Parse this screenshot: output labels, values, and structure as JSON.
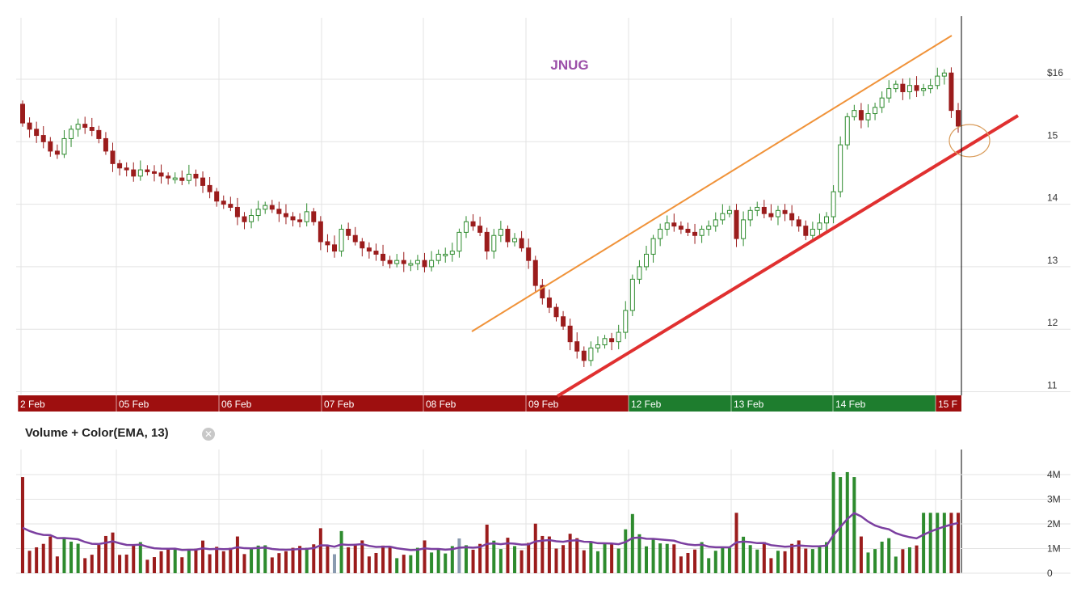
{
  "chart_data": [
    {
      "type": "candlestick",
      "title": "JNUG",
      "ylim": [
        10.9,
        17
      ],
      "y_ticks": [
        "$16",
        "15",
        "14",
        "13",
        "12",
        "11"
      ],
      "y_tick_values": [
        16,
        15,
        14,
        13,
        12,
        11
      ],
      "grid": true,
      "days": [
        {
          "label": "2 Feb",
          "session": "down"
        },
        {
          "label": "05 Feb",
          "session": "down"
        },
        {
          "label": "06 Feb",
          "session": "down"
        },
        {
          "label": "07 Feb",
          "session": "down"
        },
        {
          "label": "08 Feb",
          "session": "down"
        },
        {
          "label": "09 Feb",
          "session": "down"
        },
        {
          "label": "12 Feb",
          "session": "up"
        },
        {
          "label": "13 Feb",
          "session": "up"
        },
        {
          "label": "14 Feb",
          "session": "up"
        },
        {
          "label": "15 F",
          "session": "down"
        }
      ],
      "close": [
        15.3,
        15.2,
        15.1,
        15.0,
        14.85,
        14.8,
        15.05,
        15.2,
        15.28,
        15.23,
        15.18,
        15.05,
        14.85,
        14.65,
        14.58,
        14.55,
        14.45,
        14.55,
        14.52,
        14.5,
        14.45,
        14.42,
        14.42,
        14.38,
        14.48,
        14.42,
        14.3,
        14.2,
        14.05,
        14.0,
        13.95,
        13.8,
        13.72,
        13.82,
        13.92,
        13.98,
        13.92,
        13.85,
        13.8,
        13.75,
        13.72,
        13.88,
        13.72,
        13.4,
        13.35,
        13.25,
        13.6,
        13.5,
        13.4,
        13.3,
        13.25,
        13.2,
        13.1,
        13.05,
        13.1,
        13.05,
        13.05,
        13.1,
        13.0,
        13.1,
        13.2,
        13.2,
        13.25,
        13.55,
        13.72,
        13.65,
        13.55,
        13.25,
        13.5,
        13.6,
        13.4,
        13.45,
        13.3,
        13.1,
        12.7,
        12.5,
        12.35,
        12.2,
        12.05,
        11.8,
        11.65,
        11.5,
        11.7,
        11.75,
        11.85,
        11.8,
        11.95,
        12.3,
        12.8,
        13.0,
        13.2,
        13.45,
        13.6,
        13.7,
        13.65,
        13.6,
        13.55,
        13.5,
        13.6,
        13.65,
        13.75,
        13.85,
        13.9,
        13.45,
        13.75,
        13.9,
        13.95,
        13.85,
        13.8,
        13.9,
        13.85,
        13.75,
        13.65,
        13.5,
        13.6,
        13.7,
        13.8,
        14.2,
        14.95,
        15.4,
        15.5,
        15.35,
        15.45,
        15.55,
        15.7,
        15.85,
        15.92,
        15.8,
        15.9,
        15.82,
        15.85,
        15.9,
        16.05,
        16.1,
        15.5,
        15.25
      ],
      "ema_note": "Price candles colored green (up) / dark red (down)"
    },
    {
      "type": "bar",
      "title": "Volume + Color(EMA, 13)",
      "y_ticks": [
        "4M",
        "3M",
        "2M",
        "1M",
        "0"
      ],
      "y_tick_values": [
        4,
        3,
        2,
        1,
        0
      ],
      "unit": "millions",
      "grid": true,
      "colors": {
        "up": "#2e8b2e",
        "down": "#9b1c1c",
        "neutral": "#8a9bb0",
        "ema": "#7b3fa0"
      }
    }
  ],
  "annotations": {
    "upper_channel_color": "#f0933a",
    "lower_channel_color": "#e03030",
    "ellipse_color": "#d99b5a",
    "cursor_line_color": "#000000"
  },
  "colors": {
    "down_band": "#9e0f0f",
    "up_band": "#1e7d2e",
    "grid": "#e3e3e3",
    "up_candle": "#2e8b2e",
    "down_candle": "#9b1c1c"
  },
  "close_icon": "close-circle-icon"
}
